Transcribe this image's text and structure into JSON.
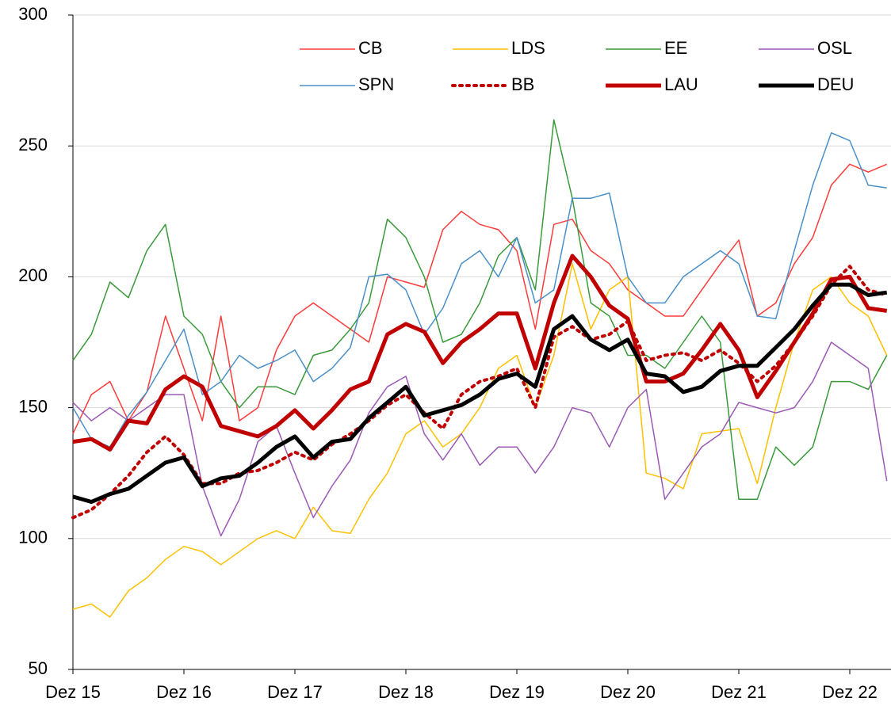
{
  "chart_data": {
    "type": "line",
    "categories": [
      "Dez 15",
      null,
      null,
      null,
      null,
      null,
      "Dez 16",
      null,
      null,
      null,
      null,
      null,
      "Dez 17",
      null,
      null,
      null,
      null,
      null,
      "Dez 18",
      null,
      null,
      null,
      null,
      null,
      "Dez 19",
      null,
      null,
      null,
      null,
      null,
      "Dez 20",
      null,
      null,
      null,
      null,
      null,
      "Dez 21",
      null,
      null,
      null,
      null,
      null,
      "Dez 22",
      null,
      null
    ],
    "ylim": [
      50,
      300
    ],
    "yticks": [
      50,
      100,
      150,
      200,
      250,
      300
    ],
    "grid": true,
    "legend": "top-right",
    "series": [
      {
        "name": "CB",
        "color": "#ff3b3b",
        "line_width": 1.5,
        "style": "solid",
        "values": [
          140,
          155,
          160,
          145,
          156,
          185,
          165,
          145,
          185,
          145,
          150,
          172,
          185,
          190,
          185,
          180,
          175,
          200,
          198,
          196,
          218,
          225,
          220,
          218,
          210,
          180,
          220,
          222,
          210,
          205,
          195,
          190,
          185,
          185,
          195,
          205,
          214,
          185,
          190,
          205,
          215,
          235,
          243,
          240,
          243
        ]
      },
      {
        "name": "LDS",
        "color": "#ffc000",
        "line_width": 1.5,
        "style": "solid",
        "values": [
          73,
          75,
          70,
          80,
          85,
          92,
          97,
          95,
          90,
          95,
          100,
          103,
          100,
          112,
          103,
          102,
          115,
          125,
          140,
          145,
          135,
          140,
          150,
          165,
          170,
          150,
          170,
          205,
          180,
          195,
          200,
          125,
          123,
          119,
          140,
          141,
          142,
          121,
          150,
          175,
          195,
          200,
          190,
          185,
          170
        ]
      },
      {
        "name": "EE",
        "color": "#3a9a3a",
        "line_width": 1.5,
        "style": "solid",
        "values": [
          168,
          178,
          198,
          192,
          210,
          220,
          185,
          178,
          160,
          150,
          158,
          158,
          155,
          170,
          172,
          180,
          190,
          222,
          215,
          200,
          175,
          178,
          190,
          208,
          215,
          195,
          260,
          230,
          190,
          185,
          170,
          170,
          165,
          175,
          185,
          175,
          115,
          115,
          135,
          128,
          135,
          160,
          160,
          157,
          170
        ]
      },
      {
        "name": "OSL",
        "color": "#9b59b6",
        "line_width": 1.5,
        "style": "solid",
        "values": [
          152,
          145,
          150,
          145,
          150,
          155,
          155,
          120,
          101,
          115,
          137,
          143,
          125,
          108,
          120,
          130,
          148,
          158,
          162,
          140,
          130,
          140,
          128,
          135,
          135,
          125,
          135,
          150,
          148,
          135,
          150,
          157,
          115,
          125,
          135,
          140,
          152,
          150,
          148,
          150,
          160,
          175,
          170,
          165,
          122
        ]
      },
      {
        "name": "SPN",
        "color": "#4a90c8",
        "line_width": 1.5,
        "style": "solid",
        "values": [
          150,
          138,
          135,
          147,
          156,
          168,
          180,
          155,
          160,
          170,
          165,
          168,
          172,
          160,
          165,
          173,
          200,
          201,
          195,
          178,
          188,
          205,
          210,
          200,
          215,
          190,
          195,
          230,
          230,
          232,
          200,
          190,
          190,
          200,
          205,
          210,
          205,
          185,
          184,
          210,
          235,
          255,
          252,
          235,
          234
        ]
      },
      {
        "name": "BB",
        "color": "#c00000",
        "line_width": 4,
        "style": "dotted",
        "values": [
          108,
          111,
          117,
          124,
          133,
          139,
          132,
          121,
          121,
          125,
          126,
          129,
          133,
          130,
          136,
          140,
          145,
          151,
          155,
          148,
          142,
          155,
          160,
          162,
          165,
          150,
          177,
          181,
          176,
          178,
          183,
          168,
          170,
          171,
          168,
          172,
          167,
          160,
          166,
          175,
          185,
          197,
          204,
          195,
          193
        ]
      },
      {
        "name": "LAU",
        "color": "#c00000",
        "line_width": 5,
        "style": "solid",
        "values": [
          137,
          138,
          134,
          145,
          144,
          157,
          162,
          158,
          143,
          141,
          139,
          143,
          149,
          142,
          149,
          157,
          160,
          178,
          182,
          179,
          167,
          175,
          180,
          186,
          186,
          165,
          190,
          208,
          200,
          189,
          184,
          160,
          160,
          163,
          172,
          182,
          172,
          154,
          164,
          175,
          186,
          199,
          200,
          188,
          187
        ]
      },
      {
        "name": "DEU",
        "color": "#000000",
        "line_width": 5,
        "style": "solid",
        "values": [
          116,
          114,
          117,
          119,
          124,
          129,
          131,
          120,
          123,
          124,
          129,
          135,
          139,
          131,
          137,
          138,
          146,
          152,
          158,
          147,
          149,
          151,
          155,
          161,
          163,
          158,
          180,
          185,
          176,
          172,
          176,
          163,
          162,
          156,
          158,
          164,
          166,
          166,
          173,
          180,
          189,
          197,
          197,
          193,
          194
        ]
      }
    ]
  }
}
